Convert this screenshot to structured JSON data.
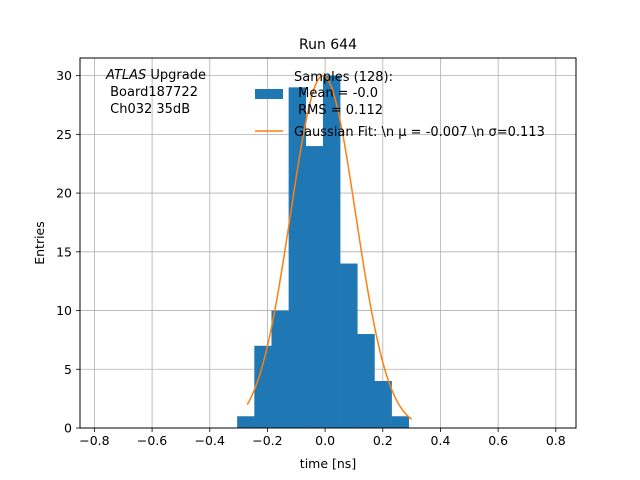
{
  "chart_data": {
    "type": "bar",
    "title": "Run 644",
    "xlabel": "time [ns]",
    "ylabel": "Entries",
    "xlim": [
      -0.85,
      0.87
    ],
    "ylim": [
      0,
      31.5
    ],
    "grid": true,
    "xticks": [
      -0.8,
      -0.6,
      -0.4,
      -0.2,
      0.0,
      0.2,
      0.4,
      0.6,
      0.8
    ],
    "xtick_labels": [
      "−0.8",
      "−0.6",
      "−0.4",
      "−0.2",
      "0.0",
      "0.2",
      "0.4",
      "0.6",
      "0.8"
    ],
    "yticks": [
      0,
      5,
      10,
      15,
      20,
      25,
      30
    ],
    "ytick_labels": [
      "0",
      "5",
      "10",
      "15",
      "20",
      "25",
      "30"
    ],
    "annotation": {
      "italic": "ATLAS",
      "line1_rest": " Upgrade",
      "line2": " Board187722",
      "line3": " Ch032 35dB"
    },
    "histogram": {
      "name": "Samples (128):",
      "color": "#1f77b4",
      "bin_edges": [
        -0.305,
        -0.2455,
        -0.186,
        -0.1265,
        -0.067,
        -0.0075,
        0.052,
        0.1115,
        0.171,
        0.2305,
        0.29,
        0.3495
      ],
      "counts": [
        1,
        7,
        10,
        29,
        24,
        30,
        14,
        8,
        4,
        1,
        0
      ]
    },
    "fit": {
      "color": "#ff7f0e",
      "mu": -0.007,
      "sigma": 0.113,
      "amplitude": 30.0,
      "x_range": [
        -0.27,
        0.3
      ]
    },
    "legend": {
      "placement": "top-right",
      "hist_lines": [
        "Samples (128):",
        " Mean = -0.0",
        " RMS = 0.112"
      ],
      "fit_label": "Gaussian Fit: \\n μ = -0.007 \\n σ=0.113"
    }
  }
}
